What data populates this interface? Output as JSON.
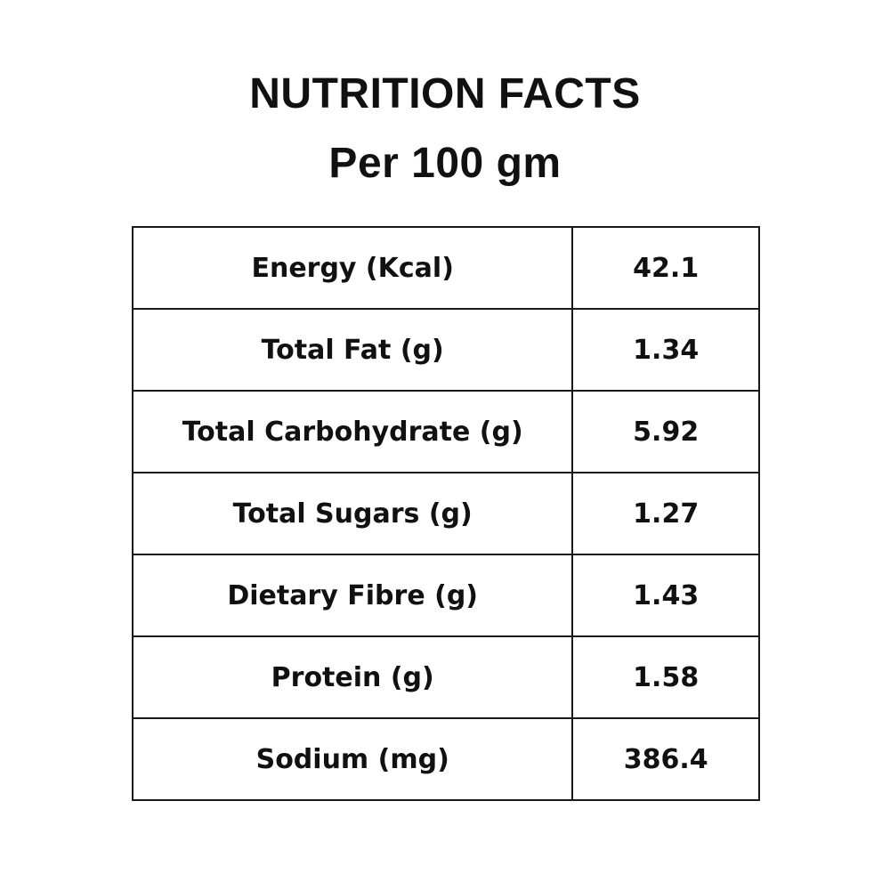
{
  "title": {
    "line1": "NUTRITION FACTS",
    "line2": "Per 100 gm"
  },
  "table": {
    "rows": [
      {
        "nutrient": "Energy (Kcal)",
        "value": "42.1"
      },
      {
        "nutrient": "Total Fat (g)",
        "value": "1.34"
      },
      {
        "nutrient": "Total Carbohydrate (g)",
        "value": "5.92"
      },
      {
        "nutrient": "Total Sugars (g)",
        "value": "1.27"
      },
      {
        "nutrient": "Dietary Fibre (g)",
        "value": "1.43"
      },
      {
        "nutrient": "Protein (g)",
        "value": "1.58"
      },
      {
        "nutrient": "Sodium (mg)",
        "value": "386.4"
      }
    ]
  },
  "colors": {
    "text": "#111111",
    "border": "#1a1a1a",
    "background": "#ffffff"
  }
}
